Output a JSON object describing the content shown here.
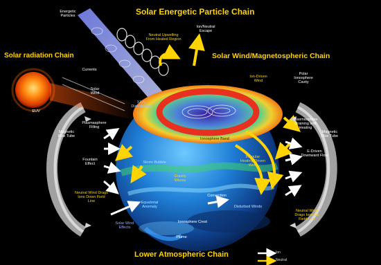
{
  "chains": {
    "solar_energetic_particle": "Solar Energetic Particle Chain",
    "solar_radiation": "Solar radiation Chain",
    "solar_wind_magnetospheric": "Solar Wind/Magnetospheric Chain",
    "lower_atmospheric": "Lower Atmospheric Chain"
  },
  "labels": {
    "energetic_particles": "Energetic Particles",
    "neutral_upwelling": "Neutral Upwelling From Heated Region",
    "ion_neutral_escape": "Ion/Neutral Escape",
    "euv": "EUV",
    "currents": "Currents",
    "solar_wind": "Solar Wind",
    "uv_disturbance": "X/UV Disturbance",
    "ion_driven_wind": "Ion-Driven Wind",
    "polar_ionosphere_cavity": "Polar Ionosphere Cavity",
    "magnetic_flux_tube_left": "Magnetic Flux Tube",
    "magnetic_flux_tube_right": "Magnetic Flux Tube",
    "plasmasphere_filling": "Plasmasphere Filling",
    "plasmasphere_draining": "Plasmasphere Draining and Heating",
    "fountain_effect": "Fountain Effect",
    "e_driven_downward_flow": "E-Driven Downward Flow",
    "ionosphere_band": "Ionosphere Band",
    "neutral_wind_left": "Neutral Wind Drags Ions Down Field Line",
    "neutral_wind_right": "Neutral Wind Drags Ions Up Field Line",
    "gravity_waves": "Gravity Waves",
    "convection": "Convection",
    "irregular_heating": "Irregular Heating Driven Wind",
    "ionosphere_crest": "Ionosphere Crest",
    "plume": "Plume",
    "auroral_oval": "Auroral Oval",
    "storm_bubble": "Storm Bubble",
    "equatorial_anomaly": "Equatorial Anomaly",
    "disturbed_winds": "Disturbed Winds",
    "wind_effects": "Solar Wind Effects"
  },
  "legend": {
    "ion": "Ion",
    "neutral": "Neutral"
  },
  "colors": {
    "chain_title": "#ffd400",
    "particle_stream": "#9aa7ff",
    "ring": "#e8301e",
    "sun": "#ff7a00",
    "flux_tube": "#cfcfcf"
  }
}
